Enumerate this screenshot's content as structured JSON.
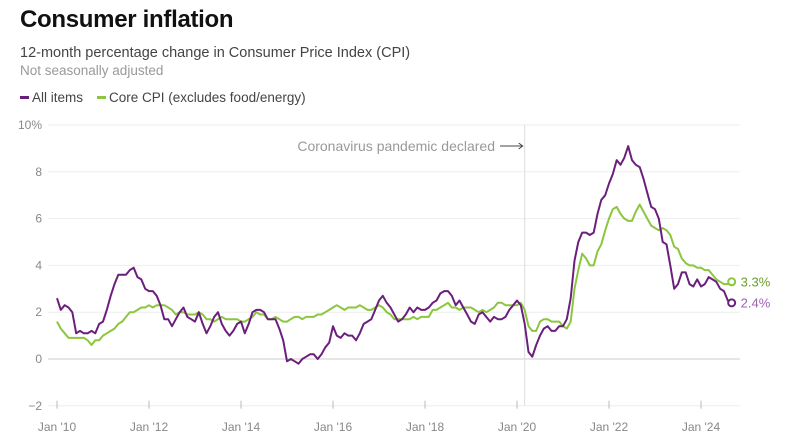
{
  "chart_data": {
    "type": "line",
    "title": "Consumer inflation",
    "subtitle": "12-month percentage change in Consumer Price Index (CPI)",
    "note": "Not seasonally adjusted",
    "frequency": "monthly",
    "x_tick_labels": [
      "Jan '10",
      "Jan '12",
      "Jan '14",
      "Jan '16",
      "Jan '18",
      "Jan '20",
      "Jan '22",
      "Jan '24"
    ],
    "y_tick_labels": [
      "10%",
      "8",
      "6",
      "4",
      "2",
      "0",
      "−2"
    ],
    "ylim": [
      -2,
      10
    ],
    "grid": true,
    "legend": "top-left",
    "annotation": {
      "text": "Coronavirus pandemic declared",
      "date": "2020-03"
    },
    "series": [
      {
        "name": "All items",
        "color": "#6b1f7c",
        "label_color": "#a063b0",
        "end_label": "2.4%",
        "values_by_year": {
          "2010": [
            2.6,
            2.1,
            2.3,
            2.2,
            2.0,
            1.1,
            1.2,
            1.1,
            1.1,
            1.2,
            1.1,
            1.5
          ],
          "2011": [
            1.6,
            2.1,
            2.7,
            3.2,
            3.6,
            3.6,
            3.6,
            3.8,
            3.9,
            3.5,
            3.4,
            3.0
          ],
          "2012": [
            2.9,
            2.9,
            2.7,
            2.3,
            1.7,
            1.7,
            1.4,
            1.7,
            2.0,
            2.2,
            1.8,
            1.7
          ],
          "2013": [
            1.6,
            2.0,
            1.5,
            1.1,
            1.4,
            1.8,
            2.0,
            1.5,
            1.2,
            1.0,
            1.2,
            1.5
          ],
          "2014": [
            1.6,
            1.1,
            1.5,
            2.0,
            2.1,
            2.1,
            2.0,
            1.7,
            1.7,
            1.7,
            1.3,
            0.8
          ],
          "2015": [
            -0.1,
            0.0,
            -0.1,
            -0.2,
            0.0,
            0.1,
            0.2,
            0.2,
            0.0,
            0.2,
            0.5,
            0.7
          ],
          "2016": [
            1.4,
            1.0,
            0.9,
            1.1,
            1.0,
            1.0,
            0.8,
            1.1,
            1.5,
            1.6,
            1.7,
            2.1
          ],
          "2017": [
            2.5,
            2.7,
            2.4,
            2.2,
            1.9,
            1.6,
            1.7,
            1.9,
            2.2,
            2.0,
            2.2,
            2.1
          ],
          "2018": [
            2.1,
            2.2,
            2.4,
            2.5,
            2.8,
            2.9,
            2.9,
            2.7,
            2.3,
            2.5,
            2.2,
            1.9
          ],
          "2019": [
            1.6,
            1.5,
            1.9,
            2.0,
            1.8,
            1.6,
            1.8,
            1.7,
            1.7,
            1.8,
            2.1,
            2.3
          ],
          "2020": [
            2.5,
            2.3,
            1.5,
            0.3,
            0.1,
            0.6,
            1.0,
            1.3,
            1.4,
            1.2,
            1.2,
            1.4
          ],
          "2021": [
            1.4,
            1.7,
            2.6,
            4.2,
            5.0,
            5.4,
            5.4,
            5.3,
            5.4,
            6.2,
            6.8,
            7.0
          ],
          "2022": [
            7.5,
            7.9,
            8.5,
            8.3,
            8.6,
            9.1,
            8.5,
            8.3,
            8.2,
            7.7,
            7.1,
            6.5
          ],
          "2023": [
            6.4,
            6.0,
            5.0,
            4.9,
            4.0,
            3.0,
            3.2,
            3.7,
            3.7,
            3.2,
            3.1,
            3.4
          ],
          "2024": [
            3.1,
            3.2,
            3.5,
            3.4,
            3.3,
            3.0,
            2.9,
            2.5,
            2.4
          ]
        }
      },
      {
        "name": "Core CPI (excludes food/energy)",
        "color": "#8cc63f",
        "label_color": "#6a9e2c",
        "end_label": "3.3%",
        "values_by_year": {
          "2010": [
            1.6,
            1.3,
            1.1,
            0.9,
            0.9,
            0.9,
            0.9,
            0.9,
            0.8,
            0.6,
            0.8,
            0.8
          ],
          "2011": [
            1.0,
            1.1,
            1.2,
            1.3,
            1.5,
            1.6,
            1.8,
            2.0,
            2.0,
            2.1,
            2.2,
            2.2
          ],
          "2012": [
            2.3,
            2.2,
            2.3,
            2.3,
            2.3,
            2.2,
            2.1,
            1.9,
            2.0,
            2.0,
            1.9,
            1.9
          ],
          "2013": [
            1.9,
            2.0,
            1.9,
            1.7,
            1.7,
            1.6,
            1.7,
            1.8,
            1.7,
            1.7,
            1.7,
            1.7
          ],
          "2014": [
            1.6,
            1.6,
            1.7,
            1.8,
            2.0,
            1.9,
            1.9,
            1.7,
            1.7,
            1.8,
            1.7,
            1.6
          ],
          "2015": [
            1.6,
            1.7,
            1.8,
            1.8,
            1.7,
            1.8,
            1.8,
            1.8,
            1.9,
            1.9,
            2.0,
            2.1
          ],
          "2016": [
            2.2,
            2.3,
            2.2,
            2.1,
            2.2,
            2.2,
            2.2,
            2.3,
            2.2,
            2.1,
            2.1,
            2.2
          ],
          "2017": [
            2.3,
            2.2,
            2.0,
            1.9,
            1.7,
            1.7,
            1.7,
            1.7,
            1.7,
            1.8,
            1.7,
            1.8
          ],
          "2018": [
            1.8,
            1.8,
            2.1,
            2.1,
            2.2,
            2.3,
            2.4,
            2.2,
            2.2,
            2.1,
            2.2,
            2.2
          ],
          "2019": [
            2.2,
            2.1,
            2.0,
            2.1,
            2.0,
            2.1,
            2.2,
            2.4,
            2.4,
            2.3,
            2.3,
            2.3
          ],
          "2020": [
            2.3,
            2.4,
            2.1,
            1.4,
            1.2,
            1.2,
            1.6,
            1.7,
            1.7,
            1.6,
            1.6,
            1.6
          ],
          "2021": [
            1.4,
            1.3,
            1.6,
            3.0,
            3.8,
            4.5,
            4.3,
            4.0,
            4.0,
            4.6,
            4.9,
            5.5
          ],
          "2022": [
            6.0,
            6.4,
            6.5,
            6.2,
            6.0,
            5.9,
            5.9,
            6.3,
            6.6,
            6.3,
            6.0,
            5.7
          ],
          "2023": [
            5.6,
            5.5,
            5.6,
            5.5,
            5.3,
            4.8,
            4.7,
            4.3,
            4.1,
            4.0,
            4.0,
            3.9
          ],
          "2024": [
            3.9,
            3.8,
            3.8,
            3.6,
            3.4,
            3.3,
            3.2,
            3.2,
            3.3
          ]
        }
      }
    ]
  }
}
